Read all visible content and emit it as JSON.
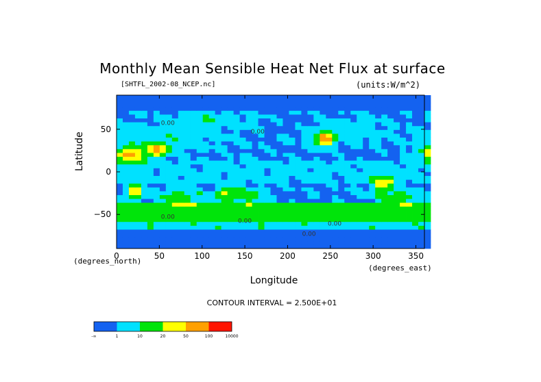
{
  "chart_data": {
    "type": "heatmap",
    "title": "Monthly Mean Sensible Heat Net Flux at surface",
    "subtitle_left": "[SHTFL_2002-08_NCEP.nc]",
    "subtitle_right": "(units:W/m^2)",
    "xlabel": "Longitude",
    "ylabel": "Latitude",
    "x_unit_label": "(degrees_east)",
    "y_unit_label": "(degrees_north)",
    "xlim": [
      0,
      360
    ],
    "ylim": [
      -90,
      90
    ],
    "x_ticks": [
      0,
      50,
      100,
      150,
      200,
      250,
      300,
      350
    ],
    "y_ticks": [
      -50,
      0,
      50
    ],
    "contour_interval_text": "CONTOUR INTERVAL = 2.500E+01",
    "levels": [
      "-∞",
      "1",
      "10",
      "20",
      "50",
      "100",
      "10000"
    ],
    "colors": [
      "#1462f0",
      "#00e1ff",
      "#00e40a",
      "#ffff00",
      "#ffa000",
      "#ff1400"
    ],
    "color_meaning": "sensible heat net flux bins (W/m^2), low to high",
    "contour_labels": [
      {
        "x": 60,
        "y": 55,
        "text": "0.00"
      },
      {
        "x": 165,
        "y": 45,
        "text": "0.00"
      },
      {
        "x": 60,
        "y": -55,
        "text": "0.00"
      },
      {
        "x": 150,
        "y": -60,
        "text": "0.00"
      },
      {
        "x": 255,
        "y": -63,
        "text": "0.00"
      },
      {
        "x": 225,
        "y": -75,
        "text": "0.00"
      }
    ]
  }
}
